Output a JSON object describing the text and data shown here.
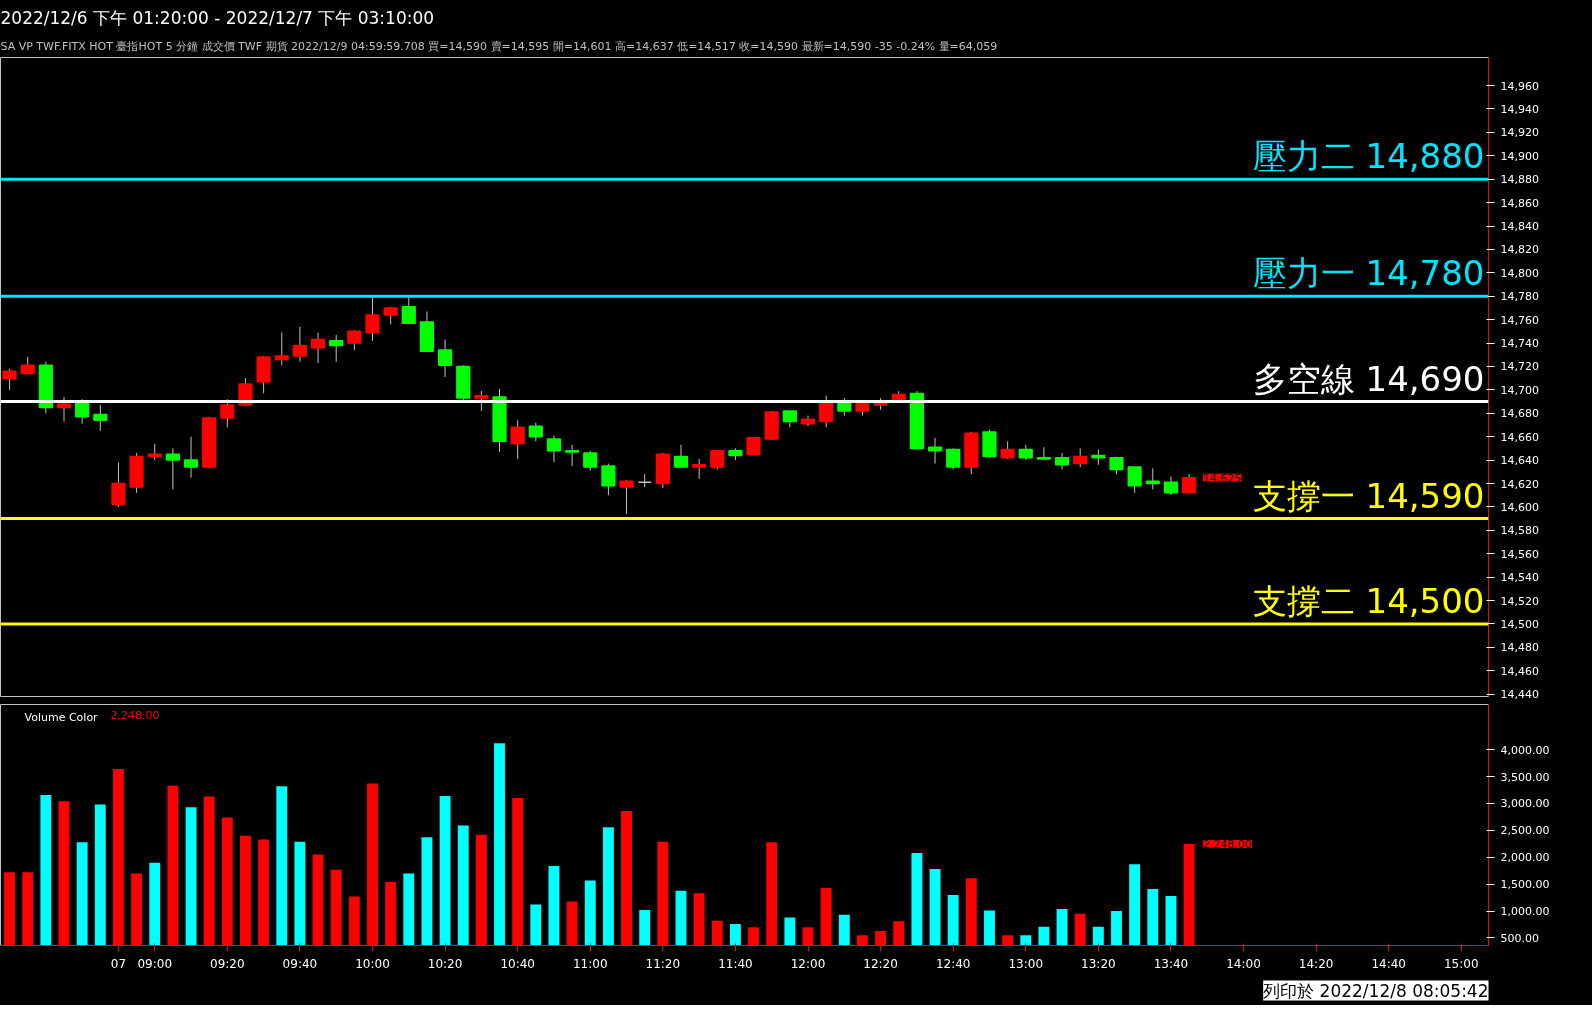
{
  "chart_data": [
    {
      "type": "candlestick",
      "title": "2022/12/6 下午 01:20:00 - 2022/12/7 下午 03:10:00",
      "subtitle": "SA  VP  TWF.FITX HOT  臺指HOT  5 分鐘  成交價  TWF  期貨  2022/12/9  04:59:59.708  買=14,590  賣=14,595  開=14,601  高=14,637  低=14,517  收=14,590  最新=14,590  -35  -0.24%  量=64,059",
      "categories": [
        null,
        null,
        null,
        null,
        null,
        null,
        null,
        null,
        null,
        null,
        null,
        null,
        null,
        null,
        null,
        null,
        null,
        null,
        null,
        null,
        null,
        null,
        null,
        null,
        null,
        null,
        null,
        null,
        null,
        null,
        null,
        null,
        null,
        null,
        null,
        null,
        null,
        null,
        null,
        null,
        null,
        null,
        null,
        null,
        null,
        null,
        null,
        null,
        null,
        null,
        null,
        null,
        null,
        null,
        null,
        null,
        null,
        null,
        null,
        null,
        null,
        null,
        null,
        null,
        null,
        null,
        null,
        null,
        null,
        null,
        null,
        null,
        null,
        null,
        null,
        null,
        null,
        null,
        null,
        null,
        null,
        null
      ],
      "ohlc": [
        [
          14710,
          14718,
          14700,
          14716
        ],
        [
          14714,
          14728,
          14714,
          14721
        ],
        [
          14721,
          14724,
          14680,
          14685
        ],
        [
          14685,
          14694,
          14673,
          14688
        ],
        [
          14689,
          14692,
          14671,
          14677
        ],
        [
          14679,
          14687,
          14665,
          14674
        ],
        [
          14602,
          14638,
          14600,
          14620
        ],
        [
          14617,
          14646,
          14612,
          14643
        ],
        [
          14643,
          14654,
          14640,
          14645
        ],
        [
          14645,
          14650,
          14615,
          14640
        ],
        [
          14640,
          14660,
          14625,
          14634
        ],
        [
          14634,
          14677,
          14633,
          14676
        ],
        [
          14676,
          14692,
          14668,
          14687
        ],
        [
          14687,
          14710,
          14686,
          14705
        ],
        [
          14707,
          14729,
          14697,
          14728
        ],
        [
          14726,
          14749,
          14721,
          14729
        ],
        [
          14729,
          14754,
          14724,
          14738
        ],
        [
          14736,
          14749,
          14723,
          14743
        ],
        [
          14742,
          14747,
          14724,
          14738
        ],
        [
          14740,
          14751,
          14734,
          14750
        ],
        [
          14749,
          14779,
          14742,
          14764
        ],
        [
          14764,
          14771,
          14756,
          14770
        ],
        [
          14771,
          14779,
          14757,
          14757
        ],
        [
          14758,
          14767,
          14733,
          14733
        ],
        [
          14734,
          14743,
          14711,
          14721
        ],
        [
          14720,
          14721,
          14691,
          14693
        ],
        [
          14693,
          14699,
          14682,
          14695
        ],
        [
          14694,
          14701,
          14647,
          14656
        ],
        [
          14654,
          14674,
          14641,
          14668
        ],
        [
          14669,
          14672,
          14656,
          14660
        ],
        [
          14658,
          14661,
          14638,
          14648
        ],
        [
          14648,
          14653,
          14635,
          14647
        ],
        [
          14646,
          14648,
          14631,
          14634
        ],
        [
          14635,
          14637,
          14610,
          14618
        ],
        [
          14617,
          14623,
          14594,
          14622
        ],
        [
          14621,
          14628,
          14617,
          14621
        ],
        [
          14620,
          14646,
          14616,
          14645
        ],
        [
          14643,
          14653,
          14634,
          14634
        ],
        [
          14634,
          14641,
          14624,
          14636
        ],
        [
          14634,
          14648,
          14632,
          14648
        ],
        [
          14648,
          14650,
          14640,
          14644
        ],
        [
          14645,
          14659,
          14645,
          14659
        ],
        [
          14658,
          14682,
          14657,
          14681
        ],
        [
          14682,
          14682,
          14668,
          14673
        ],
        [
          14671,
          14678,
          14669,
          14675
        ],
        [
          14673,
          14695,
          14668,
          14689
        ],
        [
          14689,
          14693,
          14678,
          14682
        ],
        [
          14682,
          14690,
          14678,
          14689
        ],
        [
          14687,
          14693,
          14683,
          14689
        ],
        [
          14690,
          14699,
          14690,
          14696
        ],
        [
          14697,
          14699,
          14650,
          14650
        ],
        [
          14651,
          14659,
          14637,
          14648
        ],
        [
          14649,
          14650,
          14632,
          14634
        ],
        [
          14634,
          14664,
          14628,
          14663
        ],
        [
          14664,
          14666,
          14642,
          14643
        ],
        [
          14642,
          14656,
          14641,
          14649
        ],
        [
          14649,
          14653,
          14640,
          14642
        ],
        [
          14642,
          14651,
          14641,
          14641
        ],
        [
          14642,
          14646,
          14632,
          14636
        ],
        [
          14637,
          14650,
          14634,
          14643
        ],
        [
          14644,
          14649,
          14636,
          14642
        ],
        [
          14642,
          14643,
          14628,
          14632
        ],
        [
          14634,
          14634,
          14612,
          14618
        ],
        [
          14622,
          14633,
          14615,
          14620
        ],
        [
          14621,
          14626,
          14610,
          14612
        ],
        [
          14612,
          14628,
          14612,
          14625
        ],
        null,
        null,
        null,
        null,
        null,
        null,
        null,
        null,
        null,
        null,
        null,
        null,
        null,
        null,
        null,
        null
      ],
      "colors": [
        "#ff0000",
        "#ff0000",
        "#00ff00",
        "#ff0000",
        "#00ff00",
        "#00ff00",
        "#ff0000",
        "#ff0000",
        "#ff0000",
        "#00ff00",
        "#00ff00",
        "#ff0000",
        "#ff0000",
        "#ff0000",
        "#ff0000",
        "#ff0000",
        "#ff0000",
        "#ff0000",
        "#00ff00",
        "#ff0000",
        "#ff0000",
        "#ff0000",
        "#00ff00",
        "#00ff00",
        "#00ff00",
        "#00ff00",
        "#ff0000",
        "#00ff00",
        "#ff0000",
        "#00ff00",
        "#00ff00",
        "#00ff00",
        "#00ff00",
        "#00ff00",
        "#ff0000",
        "#c0c0c0",
        "#ff0000",
        "#00ff00",
        "#ff0000",
        "#ff0000",
        "#00ff00",
        "#ff0000",
        "#ff0000",
        "#00ff00",
        "#ff0000",
        "#ff0000",
        "#00ff00",
        "#ff0000",
        "#ff0000",
        "#ff0000",
        "#00ff00",
        "#00ff00",
        "#00ff00",
        "#ff0000",
        "#00ff00",
        "#ff0000",
        "#00ff00",
        "#00ff00",
        "#00ff00",
        "#ff0000",
        "#00ff00",
        "#00ff00",
        "#00ff00",
        "#00ff00",
        "#00ff00",
        "#ff0000",
        null,
        null,
        null,
        null,
        null,
        null,
        null,
        null,
        null,
        null,
        null,
        null,
        null,
        null,
        null,
        null
      ],
      "ylim": [
        14438,
        14984
      ],
      "yticks": [
        {
          "value": 14440,
          "label": "14,440"
        },
        {
          "value": 14460,
          "label": "14,460"
        },
        {
          "value": 14480,
          "label": "14,480"
        },
        {
          "value": 14500,
          "label": "14,500"
        },
        {
          "value": 14520,
          "label": "14,520"
        },
        {
          "value": 14540,
          "label": "14,540"
        },
        {
          "value": 14560,
          "label": "14,560"
        },
        {
          "value": 14580,
          "label": "14,580"
        },
        {
          "value": 14600,
          "label": "14,600"
        },
        {
          "value": 14620,
          "label": "14,620"
        },
        {
          "value": 14640,
          "label": "14,640"
        },
        {
          "value": 14660,
          "label": "14,660"
        },
        {
          "value": 14680,
          "label": "14,680"
        },
        {
          "value": 14700,
          "label": "14,700"
        },
        {
          "value": 14720,
          "label": "14,720"
        },
        {
          "value": 14740,
          "label": "14,740"
        },
        {
          "value": 14760,
          "label": "14,760"
        },
        {
          "value": 14780,
          "label": "14,780"
        },
        {
          "value": 14800,
          "label": "14,800"
        },
        {
          "value": 14820,
          "label": "14,820"
        },
        {
          "value": 14840,
          "label": "14,840"
        },
        {
          "value": 14860,
          "label": "14,860"
        },
        {
          "value": 14880,
          "label": "14,880"
        },
        {
          "value": 14900,
          "label": "14,900"
        },
        {
          "value": 14920,
          "label": "14,920"
        },
        {
          "value": 14940,
          "label": "14,940"
        },
        {
          "value": 14960,
          "label": "14,960"
        }
      ],
      "tick_labels": "y",
      "ref_lines": [
        {
          "axis": "y",
          "value": 14880,
          "label": "壓力二 14,880",
          "color": "#00e5ff"
        },
        {
          "axis": "y",
          "value": 14780,
          "label": "壓力一 14,780",
          "color": "#00e5ff"
        },
        {
          "axis": "y",
          "value": 14690,
          "label": "多空線 14,690",
          "color": "#ffffff"
        },
        {
          "axis": "y",
          "value": 14590,
          "label": "支撐一 14,590",
          "color": "#ffff00"
        },
        {
          "axis": "y",
          "value": 14500,
          "label": "支撐二 14,500",
          "color": "#ffff00"
        }
      ],
      "annotations": [
        "14,625"
      ]
    },
    {
      "type": "bar",
      "title": "Volume Color",
      "categories": [
        null,
        null,
        null,
        null,
        null,
        null,
        "07",
        null,
        "09:00",
        null,
        null,
        null,
        "09:20",
        null,
        null,
        null,
        "09:40",
        null,
        null,
        null,
        "10:00",
        null,
        null,
        null,
        "10:20",
        null,
        null,
        null,
        "10:40",
        null,
        null,
        null,
        "11:00",
        null,
        null,
        null,
        "11:20",
        null,
        null,
        null,
        "11:40",
        null,
        null,
        null,
        "12:00",
        null,
        null,
        null,
        "12:20",
        null,
        null,
        null,
        "12:40",
        null,
        null,
        null,
        "13:00",
        null,
        null,
        null,
        "13:20",
        null,
        null,
        null,
        "13:40",
        null,
        null,
        null,
        "14:00",
        null,
        null,
        null,
        "14:20",
        null,
        null,
        null,
        "14:40",
        null,
        null,
        null,
        "15:00",
        null
      ],
      "values": [
        1720,
        1720,
        3160,
        3040,
        2280,
        2980,
        3640,
        1700,
        1900,
        3330,
        2930,
        3130,
        2740,
        2400,
        2330,
        3320,
        2290,
        2050,
        1770,
        1270,
        3370,
        1540,
        1700,
        2370,
        3140,
        2590,
        2420,
        4120,
        3100,
        1120,
        1840,
        1180,
        1570,
        2560,
        2860,
        1020,
        2290,
        1380,
        1330,
        820,
        760,
        700,
        2280,
        880,
        700,
        1430,
        930,
        550,
        630,
        810,
        2080,
        1780,
        1300,
        1610,
        1010,
        550,
        550,
        710,
        1040,
        950,
        710,
        1000,
        1870,
        1410,
        1280,
        2248,
        null,
        null,
        null,
        null,
        null,
        null,
        null,
        null,
        null,
        null,
        null,
        null,
        null,
        null,
        null,
        null
      ],
      "colors": [
        "#ff0000",
        "#ff0000",
        "#00ffff",
        "#ff0000",
        "#00ffff",
        "#00ffff",
        "#ff0000",
        "#ff0000",
        "#00ffff",
        "#ff0000",
        "#00ffff",
        "#ff0000",
        "#ff0000",
        "#ff0000",
        "#ff0000",
        "#00ffff",
        "#00ffff",
        "#ff0000",
        "#ff0000",
        "#ff0000",
        "#ff0000",
        "#ff0000",
        "#00ffff",
        "#00ffff",
        "#00ffff",
        "#00ffff",
        "#ff0000",
        "#00ffff",
        "#ff0000",
        "#00ffff",
        "#00ffff",
        "#ff0000",
        "#00ffff",
        "#00ffff",
        "#ff0000",
        "#00ffff",
        "#ff0000",
        "#00ffff",
        "#ff0000",
        "#ff0000",
        "#00ffff",
        "#ff0000",
        "#ff0000",
        "#00ffff",
        "#ff0000",
        "#ff0000",
        "#00ffff",
        "#ff0000",
        "#ff0000",
        "#ff0000",
        "#00ffff",
        "#00ffff",
        "#00ffff",
        "#ff0000",
        "#00ffff",
        "#ff0000",
        "#00ffff",
        "#00ffff",
        "#00ffff",
        "#ff0000",
        "#00ffff",
        "#00ffff",
        "#00ffff",
        "#00ffff",
        "#00ffff",
        "#ff0000",
        null,
        null,
        null,
        null,
        null,
        null,
        null,
        null,
        null,
        null,
        null,
        null,
        null,
        null,
        null,
        null
      ],
      "ylim": [
        360,
        4840
      ],
      "yticks": [
        {
          "value": 500,
          "label": "500.00"
        },
        {
          "value": 1000,
          "label": "1,000.00"
        },
        {
          "value": 1500,
          "label": "1,500.00"
        },
        {
          "value": 2000,
          "label": "2,000.00"
        },
        {
          "value": 2500,
          "label": "2,500.00"
        },
        {
          "value": 3000,
          "label": "3,000.00"
        },
        {
          "value": 3500,
          "label": "3,500.00"
        },
        {
          "value": 4000,
          "label": "4,000.00"
        }
      ],
      "annotations": [
        "2,248.00",
        "2,248.00",
        "列印於 2022/12/8 08:05:42"
      ]
    }
  ]
}
